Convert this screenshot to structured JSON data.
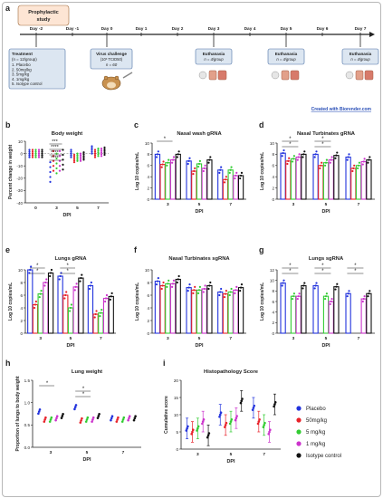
{
  "figure": {
    "colors": {
      "placebo": "#2233dd",
      "mg50": "#e8222a",
      "mg5": "#33cc33",
      "mg1": "#cc33cc",
      "isotype": "#111111",
      "timeline_box": "#dce6f1",
      "timeline_border": "#4a6fa5",
      "prophylactic_box": "#fde5d4",
      "link": "#2a4fb7"
    },
    "panel_a": {
      "letter": "a",
      "prophylactic_label": "Prophylactic study",
      "day_labels": [
        "Day -2",
        "Day -1",
        "Day 0",
        "Day 1",
        "Day 2",
        "Day 3",
        "Day 4",
        "Day 5",
        "Day 6",
        "Day 7"
      ],
      "treatment_title": "Treatment",
      "treatment_n": "(n = 12/group)",
      "treatment_items": [
        "1. Placebo",
        "2. 50mg/kg",
        "3. 5mg/kg",
        "4. 1mg/kg",
        "5. Isotype control"
      ],
      "challenge_title": "Virus challenge",
      "challenge_dose": "(10³ TCID50)",
      "challenge_n": "n = 60",
      "euthanasia_title": "Euthanasia",
      "euthanasia_n": "n = 4/group",
      "credit": "Created with Biorender.com"
    },
    "panel_b": {
      "letter": "b",
      "title": "Body weight",
      "ylabel": "Percent change in weight",
      "xlabel": "DPI",
      "xticks": [
        "0",
        "3",
        "5",
        "7"
      ],
      "yticks": [
        "10",
        "0",
        "-10",
        "-20",
        "-30",
        "-40"
      ],
      "sig": [
        "***",
        "****",
        "****",
        "****"
      ]
    },
    "panel_c": {
      "letter": "c",
      "title": "Nasal wash gRNA",
      "ylabel": "Log 10 copies/mL",
      "xlabel": "DPI",
      "xticks": [
        "3",
        "5",
        "7"
      ],
      "yticks": [
        "10",
        "8",
        "6",
        "4",
        "2",
        "0"
      ],
      "sig": [
        "*"
      ]
    },
    "panel_d": {
      "letter": "d",
      "title": "Nasal Turbinates gRNA",
      "ylabel": "Log 10 copies/mL",
      "xlabel": "DPI",
      "xticks": [
        "3",
        "5",
        "7"
      ],
      "yticks": [
        "10",
        "8",
        "6",
        "4",
        "2",
        "0"
      ],
      "sig": [
        "*",
        "*",
        "*",
        "*"
      ]
    },
    "panel_e": {
      "letter": "e",
      "title": "Lungs gRNA",
      "ylabel": "Log 10 copies/mL",
      "xlabel": "DPI",
      "xticks": [
        "3",
        "5",
        "7"
      ],
      "yticks": [
        "10",
        "8",
        "6",
        "4",
        "2",
        "0"
      ],
      "sig": [
        "*",
        "*",
        "*",
        "*"
      ]
    },
    "panel_f": {
      "letter": "f",
      "title": "Nasal Turbinates sgRNA",
      "ylabel": "Log 10 copies/mL",
      "xlabel": "DPI",
      "xticks": [
        "3",
        "5",
        "7"
      ],
      "yticks": [
        "10",
        "8",
        "6",
        "4",
        "2",
        "0"
      ],
      "sig": []
    },
    "panel_g": {
      "letter": "g",
      "title": "Lungs sgRNA",
      "ylabel": "Log 10 copies/mL",
      "xlabel": "DPI",
      "xticks": [
        "3",
        "5",
        "7"
      ],
      "yticks": [
        "12",
        "10",
        "8",
        "6",
        "4",
        "2",
        "0"
      ],
      "sig": [
        "*",
        "*",
        "*",
        "*",
        "*",
        "*"
      ]
    },
    "panel_h": {
      "letter": "h",
      "title": "Lung weight",
      "ylabel": "Proportion of lungs to body weight",
      "xlabel": "DPI",
      "xticks": [
        "3",
        "5",
        "7"
      ],
      "yticks": [
        "1.5",
        "1.0",
        "0.5",
        "0.0"
      ],
      "sig": [
        "*",
        "*",
        "*"
      ]
    },
    "panel_i": {
      "letter": "i",
      "title": "Histopathology Score",
      "ylabel": "Cumulative score",
      "xlabel": "DPI",
      "xticks": [
        "3",
        "5",
        "7"
      ],
      "yticks": [
        "20",
        "15",
        "10",
        "5",
        "0"
      ],
      "sig": []
    },
    "legend": [
      "Placebo",
      "50mg/kg",
      "5 mg/kg",
      "1 mg/kg",
      "Isotype control"
    ]
  },
  "chart_data": [
    {
      "panel": "b",
      "type": "scatter",
      "title": "Body weight",
      "xlabel": "DPI",
      "ylabel": "Percent change in weight",
      "x": [
        0,
        3,
        5,
        7
      ],
      "ylim": [
        -40,
        10
      ],
      "series": [
        {
          "name": "Placebo",
          "values": [
            0,
            -15,
            0,
            3
          ]
        },
        {
          "name": "50mg/kg",
          "values": [
            0,
            -6,
            -4,
            0
          ]
        },
        {
          "name": "5 mg/kg",
          "values": [
            0,
            -8,
            -3,
            1
          ]
        },
        {
          "name": "1 mg/kg",
          "values": [
            0,
            -6,
            -3,
            1
          ]
        },
        {
          "name": "Isotype control",
          "values": [
            0,
            -5,
            -2,
            2
          ]
        }
      ]
    },
    {
      "panel": "c",
      "type": "bar",
      "title": "Nasal wash gRNA",
      "xlabel": "DPI",
      "ylabel": "Log 10 copies/mL",
      "categories": [
        "3",
        "5",
        "7"
      ],
      "ylim": [
        0,
        10
      ],
      "series": [
        {
          "name": "Placebo",
          "values": [
            8.0,
            6.8,
            5.2
          ]
        },
        {
          "name": "50mg/kg",
          "values": [
            6.2,
            5.0,
            3.5
          ]
        },
        {
          "name": "5 mg/kg",
          "values": [
            6.5,
            6.3,
            5.2
          ]
        },
        {
          "name": "1 mg/kg",
          "values": [
            7.0,
            5.5,
            4.2
          ]
        },
        {
          "name": "Isotype control",
          "values": [
            8.0,
            7.0,
            4.2
          ]
        }
      ]
    },
    {
      "panel": "d",
      "type": "bar",
      "title": "Nasal Turbinates gRNA",
      "xlabel": "DPI",
      "ylabel": "Log 10 copies/mL",
      "categories": [
        "3",
        "5",
        "7"
      ],
      "ylim": [
        0,
        10
      ],
      "series": [
        {
          "name": "Placebo",
          "values": [
            8.2,
            8.0,
            7.5
          ]
        },
        {
          "name": "50mg/kg",
          "values": [
            6.8,
            6.0,
            5.5
          ]
        },
        {
          "name": "5 mg/kg",
          "values": [
            7.2,
            6.5,
            6.0
          ]
        },
        {
          "name": "1 mg/kg",
          "values": [
            7.5,
            7.0,
            6.7
          ]
        },
        {
          "name": "Isotype control",
          "values": [
            8.0,
            7.8,
            7.0
          ]
        }
      ]
    },
    {
      "panel": "e",
      "type": "bar",
      "title": "Lungs gRNA",
      "xlabel": "DPI",
      "ylabel": "Log 10 copies/mL",
      "categories": [
        "3",
        "5",
        "7"
      ],
      "ylim": [
        0,
        10
      ],
      "series": [
        {
          "name": "Placebo",
          "values": [
            10.0,
            9.0,
            7.5
          ]
        },
        {
          "name": "50mg/kg",
          "values": [
            4.5,
            6.0,
            3.0
          ]
        },
        {
          "name": "5 mg/kg",
          "values": [
            6.2,
            4.0,
            3.2
          ]
        },
        {
          "name": "1 mg/kg",
          "values": [
            8.0,
            7.3,
            5.5
          ]
        },
        {
          "name": "Isotype control",
          "values": [
            9.5,
            8.7,
            5.8
          ]
        }
      ]
    },
    {
      "panel": "f",
      "type": "bar",
      "title": "Nasal Turbinates sgRNA",
      "xlabel": "DPI",
      "ylabel": "Log 10 copies/mL",
      "categories": [
        "3",
        "5",
        "7"
      ],
      "ylim": [
        0,
        10
      ],
      "series": [
        {
          "name": "Placebo",
          "values": [
            8.2,
            7.2,
            6.5
          ]
        },
        {
          "name": "50mg/kg",
          "values": [
            7.5,
            6.8,
            6.2
          ]
        },
        {
          "name": "5 mg/kg",
          "values": [
            7.8,
            6.8,
            6.5
          ]
        },
        {
          "name": "1 mg/kg",
          "values": [
            7.8,
            7.0,
            6.8
          ]
        },
        {
          "name": "Isotype control",
          "values": [
            8.5,
            7.5,
            7.2
          ]
        }
      ]
    },
    {
      "panel": "g",
      "type": "bar",
      "title": "Lungs sgRNA",
      "xlabel": "DPI",
      "ylabel": "Log 10 copies/mL",
      "categories": [
        "3",
        "5",
        "7"
      ],
      "ylim": [
        0,
        12
      ],
      "series": [
        {
          "name": "Placebo",
          "values": [
            9.5,
            9.0,
            7.5
          ]
        },
        {
          "name": "50mg/kg",
          "values": [
            0,
            0,
            0
          ]
        },
        {
          "name": "5 mg/kg",
          "values": [
            7.0,
            7.0,
            0
          ]
        },
        {
          "name": "1 mg/kg",
          "values": [
            7.0,
            6.0,
            6.5
          ]
        },
        {
          "name": "Isotype control",
          "values": [
            9.0,
            8.8,
            7.5
          ]
        }
      ]
    },
    {
      "panel": "h",
      "type": "scatter",
      "title": "Lung weight",
      "xlabel": "DPI",
      "ylabel": "Proportion of lungs to body weight",
      "x": [
        3,
        5,
        7
      ],
      "ylim": [
        0,
        1.5
      ],
      "series": [
        {
          "name": "Placebo",
          "values": [
            0.8,
            0.9,
            0.65
          ]
        },
        {
          "name": "50mg/kg",
          "values": [
            0.62,
            0.6,
            0.62
          ]
        },
        {
          "name": "5 mg/kg",
          "values": [
            0.62,
            0.62,
            0.62
          ]
        },
        {
          "name": "1 mg/kg",
          "values": [
            0.65,
            0.62,
            0.65
          ]
        },
        {
          "name": "Isotype control",
          "values": [
            0.7,
            0.7,
            0.65
          ]
        }
      ]
    },
    {
      "panel": "i",
      "type": "scatter",
      "title": "Histopathology Score",
      "xlabel": "DPI",
      "ylabel": "Cumulative score",
      "x": [
        3,
        5,
        7
      ],
      "ylim": [
        0,
        20
      ],
      "series": [
        {
          "name": "Placebo",
          "values": [
            6,
            10,
            12
          ]
        },
        {
          "name": "50mg/kg",
          "values": [
            5,
            7,
            8
          ]
        },
        {
          "name": "5 mg/kg",
          "values": [
            6,
            8,
            7
          ]
        },
        {
          "name": "1 mg/kg",
          "values": [
            8,
            9,
            5
          ]
        },
        {
          "name": "Isotype control",
          "values": [
            4,
            14,
            13
          ]
        }
      ]
    }
  ]
}
